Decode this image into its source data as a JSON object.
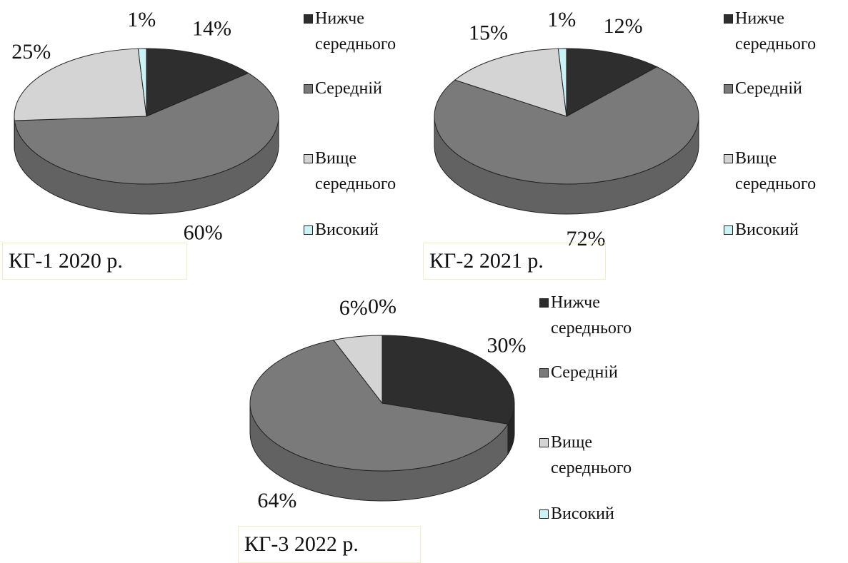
{
  "chart_data": [
    {
      "type": "pie",
      "title": "КГ-1 2020 р.",
      "categories": [
        "Нижче середнього",
        "Середній",
        "Вище середнього",
        "Високий"
      ],
      "values": [
        14,
        60,
        25,
        1
      ],
      "value_labels": [
        "14%",
        "60%",
        "25%",
        "1%"
      ],
      "colors": [
        "#2e2e2e",
        "#7a7a7a",
        "#d4d4d4",
        "#c9f3f7"
      ]
    },
    {
      "type": "pie",
      "title": "КГ-2 2021 р.",
      "categories": [
        "Нижче середнього",
        "Середній",
        "Вище середнього",
        "Високий"
      ],
      "values": [
        12,
        72,
        15,
        1
      ],
      "value_labels": [
        "12%",
        "72%",
        "15%",
        "1%"
      ],
      "colors": [
        "#2e2e2e",
        "#7a7a7a",
        "#d4d4d4",
        "#c9f3f7"
      ]
    },
    {
      "type": "pie",
      "title": "КГ-3 2022 р.",
      "categories": [
        "Нижче середнього",
        "Середній",
        "Вище середнього",
        "Високий"
      ],
      "values": [
        30,
        64,
        6,
        0
      ],
      "value_labels": [
        "30%",
        "64%",
        "6%",
        "0%"
      ],
      "colors": [
        "#2e2e2e",
        "#7a7a7a",
        "#d4d4d4",
        "#c9f3f7"
      ]
    }
  ]
}
